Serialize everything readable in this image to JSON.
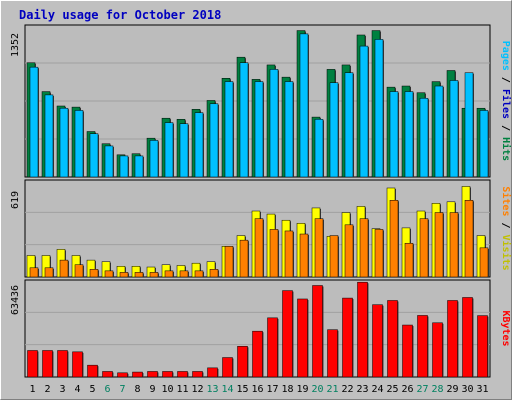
{
  "chart_data": {
    "type": "bar",
    "title": "Daily usage for October 2018",
    "categories": [
      "1",
      "2",
      "3",
      "4",
      "5",
      "6",
      "7",
      "8",
      "9",
      "10",
      "11",
      "12",
      "13",
      "14",
      "15",
      "16",
      "17",
      "18",
      "19",
      "20",
      "21",
      "22",
      "23",
      "24",
      "25",
      "26",
      "27",
      "28",
      "29",
      "30",
      "31"
    ],
    "weekend_days": [
      "6",
      "7",
      "13",
      "14",
      "20",
      "21",
      "27",
      "28"
    ],
    "colors": {
      "hits": "#008040",
      "files": "#00c0ff",
      "sites": "#ff8000",
      "visits": "#ffff00",
      "kbytes": "#ff0000",
      "title": "#0000c0",
      "weekend_label": "#008060",
      "background": "#c0c0c0",
      "plot": "#bcbcbc"
    },
    "panels": [
      {
        "id": "hits-files",
        "y_max_label": "1352",
        "ylim": [
          0,
          1352
        ],
        "legend": [
          {
            "key": "pages",
            "text": "Pages",
            "color": "#00c0ff"
          },
          {
            "key": "sep1",
            "text": " / ",
            "color": "#000000"
          },
          {
            "key": "files",
            "text": "Files",
            "color": "#0000c0"
          },
          {
            "key": "sep2",
            "text": " / ",
            "color": "#000000"
          },
          {
            "key": "hits",
            "text": "Hits",
            "color": "#008040"
          }
        ],
        "series": [
          {
            "name": "Hits",
            "color": "#008040",
            "values": [
              1030,
              770,
              640,
              630,
              410,
              300,
              200,
              210,
              350,
              530,
              520,
              610,
              690,
              890,
              1080,
              880,
              1010,
              900,
              1320,
              540,
              970,
              1010,
              1280,
              1320,
              810,
              820,
              760,
              860,
              960,
              620,
              620
            ]
          },
          {
            "name": "Files",
            "color": "#00c0ff",
            "values": [
              990,
              740,
              620,
              600,
              390,
              280,
              190,
              190,
              330,
              490,
              480,
              580,
              660,
              860,
              1030,
              860,
              970,
              860,
              1290,
              520,
              850,
              940,
              1180,
              1240,
              770,
              770,
              710,
              820,
              870,
              940,
              600
            ]
          }
        ]
      },
      {
        "id": "sites-visits",
        "y_max_label": "619",
        "ylim": [
          0,
          619
        ],
        "legend": [
          {
            "key": "sites",
            "text": "Sites",
            "color": "#ff8000"
          },
          {
            "key": "sep1",
            "text": " / ",
            "color": "#000000"
          },
          {
            "key": "visits",
            "text": "Visits",
            "color": "#c0c000"
          }
        ],
        "series": [
          {
            "name": "Visits",
            "color": "#ffff00",
            "values": [
              140,
              140,
              180,
              140,
              110,
              100,
              70,
              70,
              65,
              80,
              75,
              90,
              100,
              200,
              270,
              430,
              410,
              370,
              350,
              450,
              265,
              420,
              460,
              315,
              580,
              320,
              430,
              480,
              490,
              590,
              270
            ]
          },
          {
            "name": "Sites",
            "color": "#ff8000",
            "values": [
              60,
              60,
              110,
              80,
              50,
              40,
              30,
              30,
              30,
              40,
              40,
              40,
              50,
              200,
              240,
              380,
              310,
              300,
              280,
              380,
              270,
              340,
              380,
              310,
              500,
              220,
              380,
              420,
              420,
              500,
              190
            ]
          }
        ]
      },
      {
        "id": "kbytes",
        "y_max_label": "63436",
        "ylim": [
          0,
          63436
        ],
        "legend": [
          {
            "key": "kbytes",
            "text": "KBytes",
            "color": "#ff0000"
          }
        ],
        "series": [
          {
            "name": "KBytes",
            "color": "#ff0000",
            "values": [
              17700,
              17700,
              17700,
              16800,
              7900,
              3700,
              2800,
              3300,
              3700,
              3700,
              3700,
              3700,
              6100,
              13000,
              20500,
              30600,
              39500,
              57700,
              52100,
              61100,
              31600,
              52700,
              63300,
              48300,
              51100,
              34700,
              41100,
              36200,
              51100,
              53100,
              41000
            ]
          }
        ]
      }
    ]
  }
}
